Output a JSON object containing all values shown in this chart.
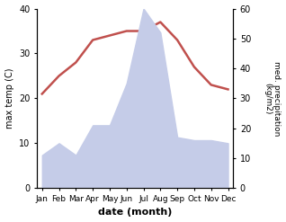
{
  "months": [
    "Jan",
    "Feb",
    "Mar",
    "Apr",
    "May",
    "Jun",
    "Jul",
    "Aug",
    "Sep",
    "Oct",
    "Nov",
    "Dec"
  ],
  "temperature": [
    21,
    25,
    28,
    33,
    34,
    35,
    35,
    37,
    33,
    27,
    23,
    22
  ],
  "precipitation": [
    11,
    15,
    11,
    21,
    21,
    35,
    60,
    52,
    17,
    16,
    16,
    15
  ],
  "temp_color": "#c0504d",
  "precip_fill_color": "#c5cce8",
  "ylabel_left": "max temp (C)",
  "ylabel_right": "med. precipitation\n(kg/m2)",
  "xlabel": "date (month)",
  "ylim_left": [
    0,
    40
  ],
  "ylim_right": [
    0,
    60
  ],
  "temp_linewidth": 1.8,
  "background_color": "#ffffff",
  "left_yticks": [
    0,
    10,
    20,
    30,
    40
  ],
  "right_yticks": [
    0,
    10,
    20,
    30,
    40,
    50,
    60
  ]
}
